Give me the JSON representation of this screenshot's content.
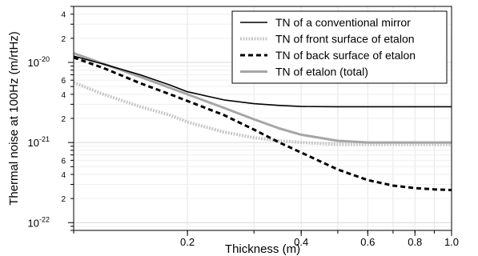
{
  "chart_data": {
    "type": "line",
    "xlabel": "Thickness (m)",
    "ylabel": "Thermal noise at 100Hz (m/rtHz)",
    "x_scale": "log",
    "y_scale": "log",
    "xlim": [
      0.1,
      1.0
    ],
    "ylim": [
      8e-23,
      5e-20
    ],
    "x_ticks": [
      {
        "value": 0.2,
        "label": "0.2"
      },
      {
        "value": 0.4,
        "label": "0.4"
      },
      {
        "value": 0.6,
        "label": "0.6"
      },
      {
        "value": 0.8,
        "label": "0.8"
      },
      {
        "value": 1.0,
        "label": "1.0"
      }
    ],
    "y_major_ticks": [
      {
        "value": 1e-22,
        "base": "10",
        "exp": "-22"
      },
      {
        "value": 1e-21,
        "base": "10",
        "exp": "-21"
      },
      {
        "value": 1e-20,
        "base": "10",
        "exp": "-20"
      }
    ],
    "y_minor_labels": [
      {
        "value": 2e-22,
        "label": "2"
      },
      {
        "value": 4e-22,
        "label": "4"
      },
      {
        "value": 6e-22,
        "label": "6"
      },
      {
        "value": 2e-21,
        "label": "2"
      },
      {
        "value": 4e-21,
        "label": "4"
      },
      {
        "value": 6e-21,
        "label": "6"
      },
      {
        "value": 2e-20,
        "label": "2"
      },
      {
        "value": 4e-20,
        "label": "4"
      }
    ],
    "grid": true,
    "legend_position": "top-right",
    "x": [
      0.1,
      0.12,
      0.15,
      0.18,
      0.2,
      0.25,
      0.3,
      0.35,
      0.4,
      0.5,
      0.6,
      0.7,
      0.8,
      0.9,
      1.0
    ],
    "series": [
      {
        "name": "TN of a conventional mirror",
        "color": "#000000",
        "style": "solid",
        "values": [
          1.2e-20,
          9.5e-21,
          7e-21,
          5.2e-21,
          4.3e-21,
          3.4e-21,
          3.05e-21,
          2.9e-21,
          2.82e-21,
          2.8e-21,
          2.8e-21,
          2.8e-21,
          2.8e-21,
          2.8e-21,
          2.8e-21
        ]
      },
      {
        "name": "TN of front surface of etalon",
        "color": "#c8c8c8",
        "style": "dotted",
        "values": [
          5.6e-21,
          4e-21,
          2.8e-21,
          2.2e-21,
          1.8e-21,
          1.35e-21,
          1.15e-21,
          1.05e-21,
          1e-21,
          9.5e-22,
          9.5e-22,
          9.5e-22,
          9.5e-22,
          9.5e-22,
          9.5e-22
        ]
      },
      {
        "name": "TN of back surface of etalon",
        "color": "#000000",
        "style": "dashed",
        "values": [
          1.15e-20,
          8.5e-21,
          5.5e-21,
          4e-21,
          3.3e-21,
          2.2e-21,
          1.45e-21,
          1e-21,
          7.5e-22,
          4.6e-22,
          3.4e-22,
          2.9e-22,
          2.7e-22,
          2.6e-22,
          2.55e-22
        ]
      },
      {
        "name": "TN of etalon (total)",
        "color": "#a6a6a6",
        "style": "solid",
        "values": [
          1.3e-20,
          9.6e-21,
          6.6e-21,
          4.8e-21,
          4e-21,
          2.7e-21,
          1.95e-21,
          1.5e-21,
          1.25e-21,
          1.05e-21,
          1e-21,
          1e-21,
          1e-21,
          1e-21,
          1e-21
        ]
      }
    ]
  }
}
